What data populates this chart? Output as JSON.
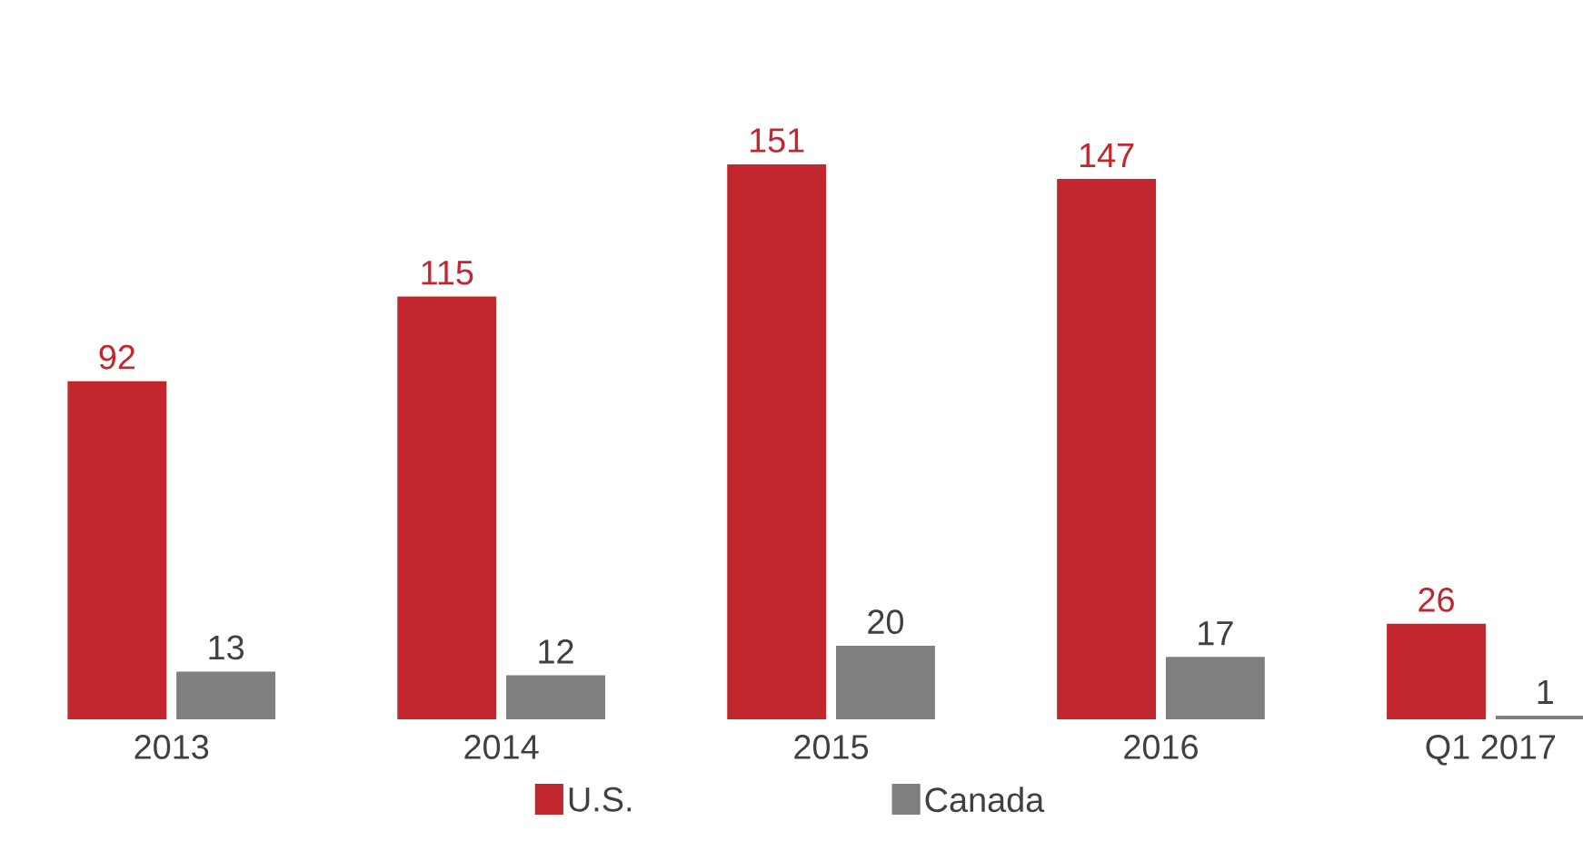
{
  "chart_data": {
    "type": "bar",
    "categories": [
      "2013",
      "2014",
      "2015",
      "2016",
      "Q1 2017"
    ],
    "series": [
      {
        "name": "U.S.",
        "color": "#c1272d",
        "values": [
          92,
          115,
          151,
          147,
          26
        ]
      },
      {
        "name": "Canada",
        "color": "#7f7f7f",
        "values": [
          13,
          12,
          20,
          17,
          1
        ]
      }
    ],
    "data_labels": true,
    "legend": "bottom",
    "tick_labels": "x"
  }
}
